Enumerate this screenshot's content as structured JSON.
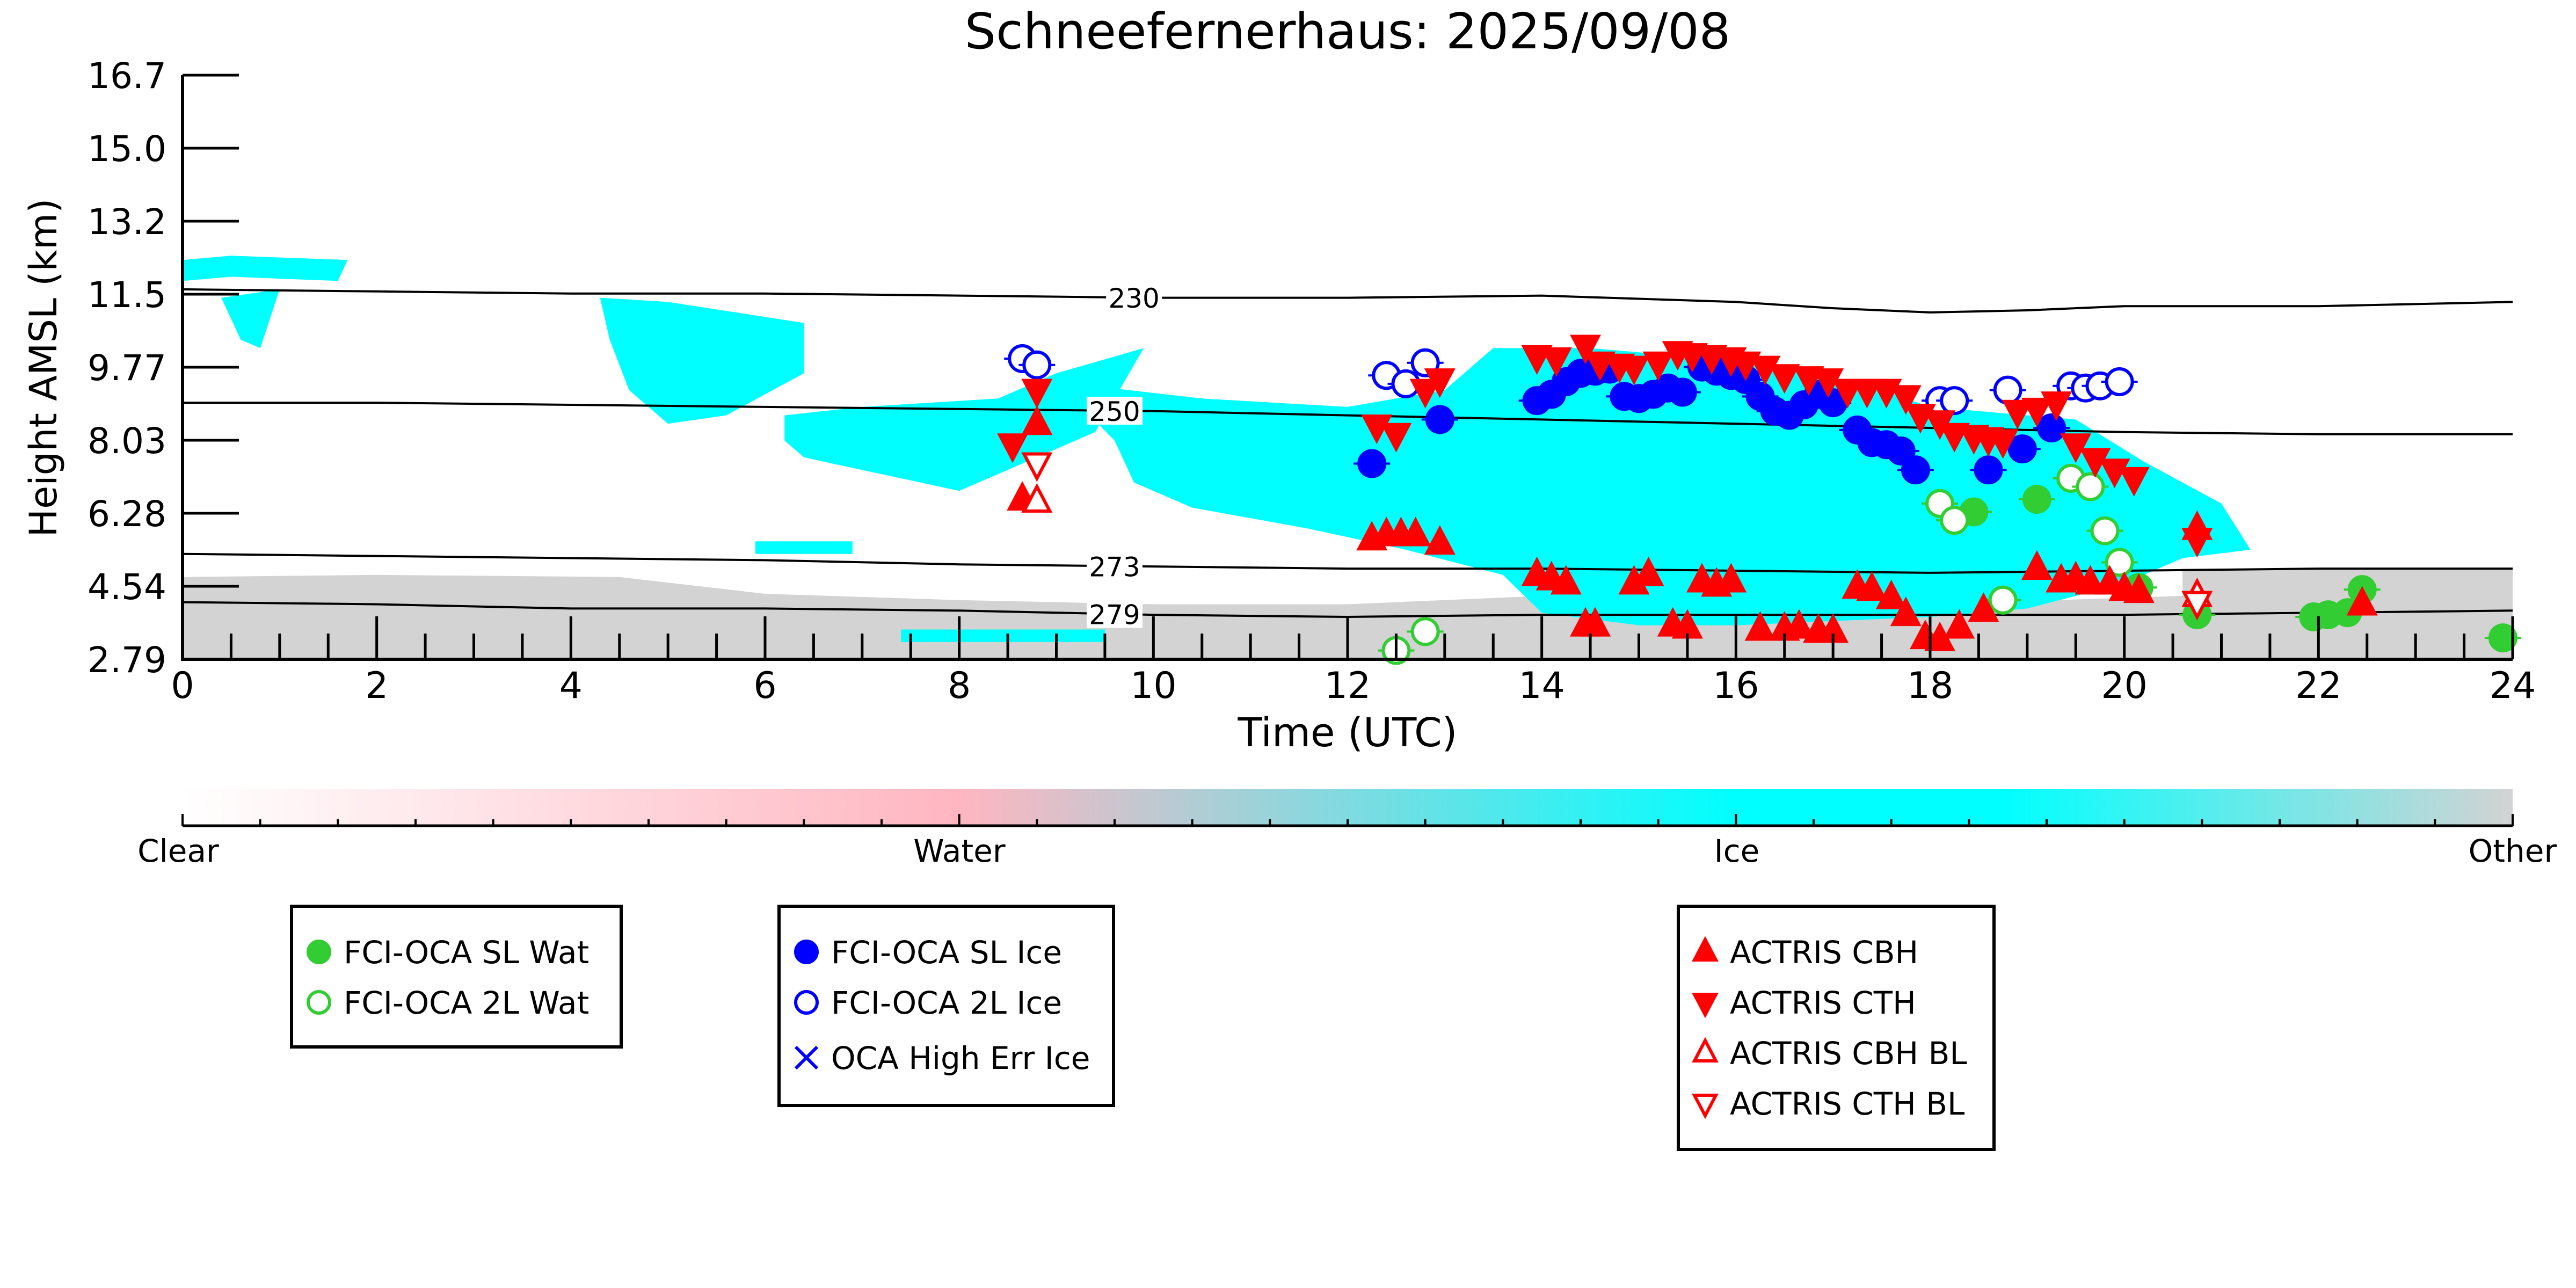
{
  "chart_data": {
    "type": "scatter",
    "title": "Schneefernerhaus: 2025/09/08",
    "xlabel": "Time (UTC)",
    "ylabel": "Height AMSL (km)",
    "xlim": [
      0,
      24
    ],
    "ylim": [
      2.79,
      16.7
    ],
    "xticks": [
      "0",
      "2",
      "4",
      "6",
      "8",
      "10",
      "12",
      "14",
      "16",
      "18",
      "20",
      "22",
      "24"
    ],
    "yticks": [
      "2.79",
      "4.54",
      "6.28",
      "8.03",
      "9.77",
      "11.5",
      "13.2",
      "15.0",
      "16.7"
    ],
    "grid": false,
    "contours": [
      {
        "label": "230",
        "label_x": 9.8,
        "points": [
          [
            0,
            11.6
          ],
          [
            2,
            11.55
          ],
          [
            4,
            11.5
          ],
          [
            6,
            11.5
          ],
          [
            8,
            11.45
          ],
          [
            10,
            11.4
          ],
          [
            12,
            11.4
          ],
          [
            14,
            11.45
          ],
          [
            16,
            11.3
          ],
          [
            17,
            11.15
          ],
          [
            18,
            11.05
          ],
          [
            19,
            11.1
          ],
          [
            20,
            11.2
          ],
          [
            22,
            11.2
          ],
          [
            24,
            11.3
          ]
        ]
      },
      {
        "label": "250",
        "label_x": 9.6,
        "points": [
          [
            0,
            8.9
          ],
          [
            2,
            8.9
          ],
          [
            4,
            8.85
          ],
          [
            6,
            8.8
          ],
          [
            8,
            8.75
          ],
          [
            10,
            8.7
          ],
          [
            12,
            8.6
          ],
          [
            14,
            8.5
          ],
          [
            16,
            8.4
          ],
          [
            18,
            8.3
          ],
          [
            20,
            8.2
          ],
          [
            22,
            8.15
          ],
          [
            24,
            8.15
          ]
        ]
      },
      {
        "label": "273",
        "label_x": 9.6,
        "points": [
          [
            0,
            5.3
          ],
          [
            2,
            5.25
          ],
          [
            4,
            5.2
          ],
          [
            6,
            5.15
          ],
          [
            8,
            5.05
          ],
          [
            10,
            5.0
          ],
          [
            12,
            4.95
          ],
          [
            14,
            4.95
          ],
          [
            16,
            4.9
          ],
          [
            18,
            4.85
          ],
          [
            20,
            4.9
          ],
          [
            22,
            4.95
          ],
          [
            24,
            4.95
          ]
        ]
      },
      {
        "label": "279",
        "label_x": 9.6,
        "points": [
          [
            0,
            4.15
          ],
          [
            2,
            4.1
          ],
          [
            4,
            4.0
          ],
          [
            6,
            4.0
          ],
          [
            8,
            3.95
          ],
          [
            10,
            3.85
          ],
          [
            12,
            3.8
          ],
          [
            14,
            3.85
          ],
          [
            16,
            3.85
          ],
          [
            18,
            3.85
          ],
          [
            20,
            3.85
          ],
          [
            22,
            3.9
          ],
          [
            24,
            3.95
          ]
        ]
      }
    ],
    "ice_regions": [
      {
        "points": [
          [
            0,
            11.8
          ],
          [
            0.5,
            11.9
          ],
          [
            1.6,
            11.8
          ],
          [
            1.7,
            12.3
          ],
          [
            0.5,
            12.4
          ],
          [
            0,
            12.3
          ]
        ]
      },
      {
        "points": [
          [
            0.4,
            11.4
          ],
          [
            1.0,
            11.6
          ],
          [
            0.8,
            10.2
          ],
          [
            0.6,
            10.4
          ]
        ]
      },
      {
        "points": [
          [
            4.3,
            11.4
          ],
          [
            5.0,
            11.3
          ],
          [
            6.4,
            10.8
          ],
          [
            6.4,
            9.6
          ],
          [
            5.6,
            8.6
          ],
          [
            5.0,
            8.4
          ],
          [
            4.6,
            9.2
          ],
          [
            4.4,
            10.4
          ]
        ]
      },
      {
        "points": [
          [
            6.2,
            8.6
          ],
          [
            7.0,
            8.8
          ],
          [
            8.4,
            9.0
          ],
          [
            9.0,
            9.6
          ],
          [
            9.9,
            10.2
          ],
          [
            9.4,
            8.2
          ],
          [
            8.0,
            6.8
          ],
          [
            7.2,
            7.2
          ],
          [
            6.4,
            7.6
          ],
          [
            6.2,
            8.0
          ]
        ]
      },
      {
        "points": [
          [
            9.0,
            9.4
          ],
          [
            10.5,
            9.0
          ],
          [
            12.0,
            8.8
          ],
          [
            13.0,
            9.2
          ],
          [
            13.5,
            10.2
          ],
          [
            14.5,
            10.2
          ],
          [
            16.5,
            9.8
          ],
          [
            17.5,
            9.2
          ],
          [
            18.0,
            8.8
          ],
          [
            19.5,
            8.5
          ],
          [
            20.2,
            7.5
          ],
          [
            21.0,
            6.5
          ],
          [
            21.3,
            5.4
          ],
          [
            20.6,
            5.2
          ],
          [
            20.0,
            4.6
          ],
          [
            19.0,
            4.0
          ],
          [
            18.0,
            3.8
          ],
          [
            16.0,
            3.6
          ],
          [
            15.0,
            3.6
          ],
          [
            14.0,
            3.9
          ],
          [
            13.6,
            4.8
          ],
          [
            12.6,
            5.4
          ],
          [
            11.6,
            5.9
          ],
          [
            10.4,
            6.4
          ],
          [
            9.8,
            7.0
          ],
          [
            9.6,
            8.0
          ]
        ]
      },
      {
        "points": [
          [
            5.9,
            5.6
          ],
          [
            6.9,
            5.6
          ],
          [
            6.9,
            5.3
          ],
          [
            5.9,
            5.3
          ]
        ]
      },
      {
        "points": [
          [
            7.4,
            3.5
          ],
          [
            9.5,
            3.5
          ],
          [
            9.5,
            3.2
          ],
          [
            7.4,
            3.2
          ]
        ]
      }
    ],
    "other_regions": [
      {
        "points": [
          [
            0,
            2.79
          ],
          [
            24,
            2.79
          ],
          [
            24,
            4.95
          ],
          [
            20.6,
            4.95
          ],
          [
            20.6,
            4.3
          ],
          [
            18.0,
            4.1
          ],
          [
            16.0,
            4.0
          ],
          [
            14.0,
            4.3
          ],
          [
            12.0,
            4.1
          ],
          [
            10.0,
            4.1
          ],
          [
            8.0,
            4.2
          ],
          [
            6.0,
            4.35
          ],
          [
            4.5,
            4.75
          ],
          [
            2.0,
            4.8
          ],
          [
            0,
            4.75
          ]
        ]
      }
    ],
    "series": [
      {
        "name": "FCI-OCA SL Wat",
        "marker": "circle",
        "fill": "solid",
        "color": "#32cd32",
        "points": [
          [
            18.45,
            6.3
          ],
          [
            19.1,
            6.6
          ],
          [
            20.15,
            4.5
          ],
          [
            20.75,
            3.85
          ],
          [
            21.95,
            3.8
          ],
          [
            22.1,
            3.85
          ],
          [
            22.3,
            3.9
          ],
          [
            22.45,
            4.45
          ],
          [
            23.9,
            3.3
          ]
        ]
      },
      {
        "name": "FCI-OCA 2L Wat",
        "marker": "circle",
        "fill": "open",
        "color": "#32cd32",
        "points": [
          [
            12.5,
            3.0
          ],
          [
            12.8,
            3.45
          ],
          [
            18.1,
            6.5
          ],
          [
            18.25,
            6.1
          ],
          [
            18.75,
            4.2
          ],
          [
            19.45,
            7.1
          ],
          [
            19.65,
            6.9
          ],
          [
            19.8,
            5.85
          ],
          [
            19.95,
            5.1
          ]
        ]
      },
      {
        "name": "FCI-OCA SL Ice",
        "marker": "circle",
        "fill": "solid",
        "color": "#0000ff",
        "points": [
          [
            12.25,
            7.45
          ],
          [
            12.95,
            8.5
          ],
          [
            13.95,
            8.95
          ],
          [
            14.1,
            9.1
          ],
          [
            14.25,
            9.4
          ],
          [
            14.4,
            9.6
          ],
          [
            14.55,
            9.65
          ],
          [
            14.7,
            9.7
          ],
          [
            14.85,
            9.05
          ],
          [
            15.0,
            9.0
          ],
          [
            15.15,
            9.1
          ],
          [
            15.3,
            9.25
          ],
          [
            15.45,
            9.15
          ],
          [
            15.65,
            9.75
          ],
          [
            15.8,
            9.65
          ],
          [
            15.95,
            9.55
          ],
          [
            16.1,
            9.45
          ],
          [
            16.25,
            9.05
          ],
          [
            16.4,
            8.7
          ],
          [
            16.55,
            8.6
          ],
          [
            16.7,
            8.85
          ],
          [
            16.85,
            9.1
          ],
          [
            17.0,
            8.9
          ],
          [
            17.25,
            8.25
          ],
          [
            17.4,
            7.95
          ],
          [
            17.55,
            7.9
          ],
          [
            17.7,
            7.75
          ],
          [
            17.85,
            7.3
          ],
          [
            18.6,
            7.3
          ],
          [
            18.95,
            7.8
          ],
          [
            19.25,
            8.3
          ]
        ]
      },
      {
        "name": "FCI-OCA 2L Ice",
        "marker": "circle",
        "fill": "open",
        "color": "#0000ff",
        "points": [
          [
            8.65,
            9.95
          ],
          [
            8.8,
            9.8
          ],
          [
            12.4,
            9.55
          ],
          [
            12.6,
            9.35
          ],
          [
            12.8,
            9.85
          ],
          [
            18.1,
            8.95
          ],
          [
            18.25,
            8.95
          ],
          [
            18.8,
            9.2
          ],
          [
            19.45,
            9.3
          ],
          [
            19.6,
            9.25
          ],
          [
            19.75,
            9.3
          ],
          [
            19.95,
            9.4
          ]
        ]
      },
      {
        "name": "OCA High Err Ice",
        "marker": "x",
        "fill": "solid",
        "color": "#0000ff",
        "points": []
      },
      {
        "name": "ACTRIS CBH",
        "marker": "triangle-up",
        "fill": "solid",
        "color": "#ff0000",
        "points": [
          [
            8.65,
            6.6
          ],
          [
            8.8,
            8.4
          ],
          [
            12.25,
            5.65
          ],
          [
            12.4,
            5.75
          ],
          [
            12.55,
            5.75
          ],
          [
            12.7,
            5.75
          ],
          [
            12.95,
            5.55
          ],
          [
            13.95,
            4.8
          ],
          [
            14.1,
            4.7
          ],
          [
            14.25,
            4.6
          ],
          [
            14.45,
            3.6
          ],
          [
            14.55,
            3.6
          ],
          [
            14.95,
            4.6
          ],
          [
            15.1,
            4.8
          ],
          [
            15.35,
            3.6
          ],
          [
            15.5,
            3.55
          ],
          [
            15.65,
            4.65
          ],
          [
            15.8,
            4.55
          ],
          [
            15.95,
            4.65
          ],
          [
            16.25,
            3.5
          ],
          [
            16.5,
            3.5
          ],
          [
            16.65,
            3.55
          ],
          [
            16.85,
            3.45
          ],
          [
            17.0,
            3.45
          ],
          [
            17.25,
            4.5
          ],
          [
            17.4,
            4.45
          ],
          [
            17.6,
            4.25
          ],
          [
            17.75,
            3.85
          ],
          [
            17.95,
            3.3
          ],
          [
            18.1,
            3.25
          ],
          [
            18.3,
            3.55
          ],
          [
            18.55,
            3.95
          ],
          [
            19.1,
            4.95
          ],
          [
            19.35,
            4.65
          ],
          [
            19.5,
            4.7
          ],
          [
            19.65,
            4.6
          ],
          [
            19.85,
            4.6
          ],
          [
            20.0,
            4.45
          ],
          [
            20.15,
            4.4
          ],
          [
            20.75,
            5.9
          ],
          [
            22.45,
            4.1
          ]
        ]
      },
      {
        "name": "ACTRIS CTH",
        "marker": "triangle-down",
        "fill": "solid",
        "color": "#ff0000",
        "points": [
          [
            8.55,
            7.9
          ],
          [
            8.8,
            9.2
          ],
          [
            12.3,
            8.35
          ],
          [
            12.5,
            8.15
          ],
          [
            12.8,
            9.2
          ],
          [
            12.95,
            9.45
          ],
          [
            13.95,
            10.0
          ],
          [
            14.15,
            9.95
          ],
          [
            14.45,
            10.25
          ],
          [
            14.6,
            9.85
          ],
          [
            14.8,
            9.8
          ],
          [
            14.95,
            9.75
          ],
          [
            15.2,
            9.85
          ],
          [
            15.4,
            10.1
          ],
          [
            15.55,
            10.05
          ],
          [
            15.75,
            10.0
          ],
          [
            15.95,
            9.95
          ],
          [
            16.1,
            9.85
          ],
          [
            16.3,
            9.75
          ],
          [
            16.5,
            9.55
          ],
          [
            16.75,
            9.5
          ],
          [
            16.95,
            9.45
          ],
          [
            17.15,
            9.2
          ],
          [
            17.35,
            9.2
          ],
          [
            17.55,
            9.2
          ],
          [
            17.75,
            9.05
          ],
          [
            17.9,
            8.6
          ],
          [
            18.1,
            8.45
          ],
          [
            18.25,
            8.15
          ],
          [
            18.45,
            8.1
          ],
          [
            18.6,
            8.05
          ],
          [
            18.75,
            8.0
          ],
          [
            18.9,
            8.7
          ],
          [
            19.1,
            8.75
          ],
          [
            19.3,
            8.9
          ],
          [
            19.5,
            7.9
          ],
          [
            19.7,
            7.55
          ],
          [
            19.9,
            7.3
          ],
          [
            20.1,
            7.1
          ],
          [
            20.75,
            5.65
          ]
        ]
      },
      {
        "name": "ACTRIS CBH BL",
        "marker": "triangle-up",
        "fill": "open",
        "color": "#ff0000",
        "points": [
          [
            8.8,
            6.55
          ],
          [
            20.75,
            4.3
          ]
        ]
      },
      {
        "name": "ACTRIS CTH BL",
        "marker": "triangle-down",
        "fill": "open",
        "color": "#ff0000",
        "points": [
          [
            8.8,
            7.45
          ],
          [
            20.75,
            4.15
          ]
        ]
      }
    ],
    "colorbar": {
      "labels": [
        "Clear",
        "Water",
        "Ice",
        "Other"
      ],
      "colors": [
        "#ffffff",
        "#ffb6c1",
        "#00ffff",
        "#d3d3d3"
      ]
    },
    "legends": [
      {
        "entries": [
          "FCI-OCA SL Wat",
          "FCI-OCA 2L Wat"
        ]
      },
      {
        "entries": [
          "FCI-OCA SL Ice",
          "FCI-OCA 2L Ice",
          "OCA High Err Ice"
        ]
      },
      {
        "entries": [
          "ACTRIS CBH",
          "ACTRIS CTH",
          "ACTRIS CBH BL",
          "ACTRIS CTH BL"
        ]
      }
    ]
  }
}
